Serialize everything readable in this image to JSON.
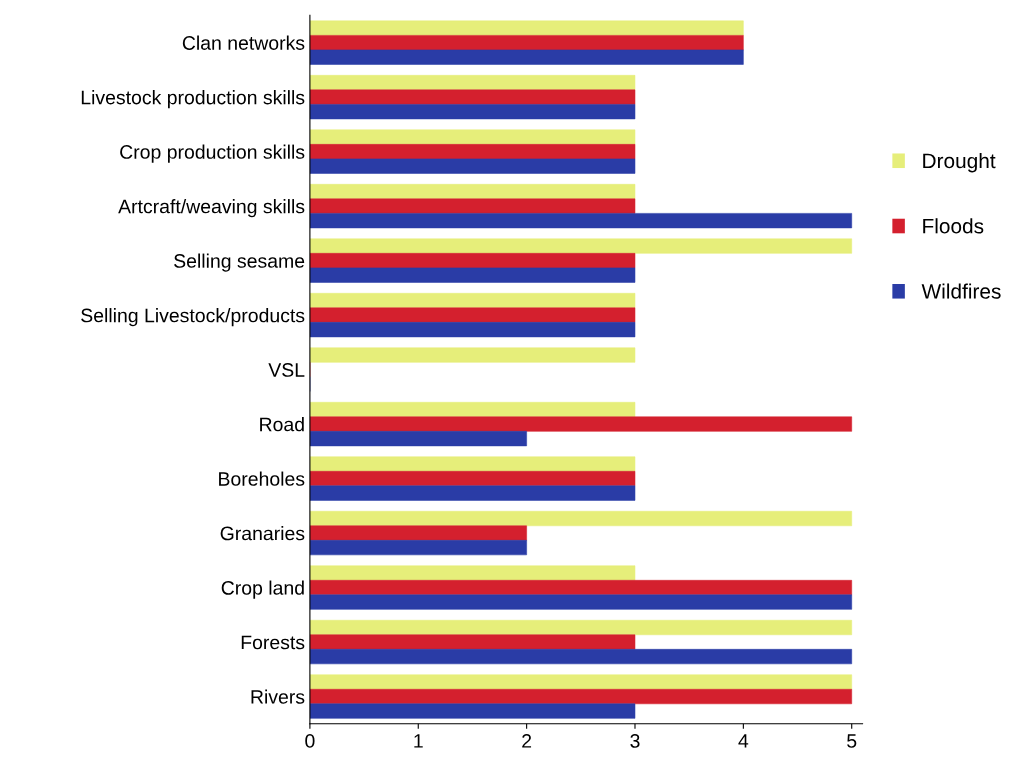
{
  "chart_data": {
    "type": "bar",
    "orientation": "horizontal",
    "categories": [
      "Clan networks",
      "Livestock production skills",
      "Crop production skills",
      "Artcraft/weaving skills",
      "Selling sesame",
      "Selling Livestock/products",
      "VSL",
      "Road",
      "Boreholes",
      "Granaries",
      "Crop land",
      "Forests",
      "Rivers"
    ],
    "series": [
      {
        "name": "Drought",
        "color": "#e6ee7a",
        "values": [
          4,
          3,
          3,
          3,
          5,
          3,
          3,
          3,
          3,
          5,
          3,
          5,
          5
        ]
      },
      {
        "name": "Floods",
        "color": "#d4202e",
        "values": [
          4,
          3,
          3,
          3,
          3,
          3,
          0,
          5,
          3,
          2,
          5,
          3,
          5
        ]
      },
      {
        "name": "Wildfires",
        "color": "#2a3ca6",
        "values": [
          4,
          3,
          3,
          5,
          3,
          3,
          0,
          2,
          3,
          2,
          5,
          5,
          3
        ]
      }
    ],
    "xlim": [
      0,
      5.1
    ],
    "xticks": [
      0,
      1,
      2,
      3,
      4,
      5
    ],
    "grid": false,
    "legend": "right"
  }
}
